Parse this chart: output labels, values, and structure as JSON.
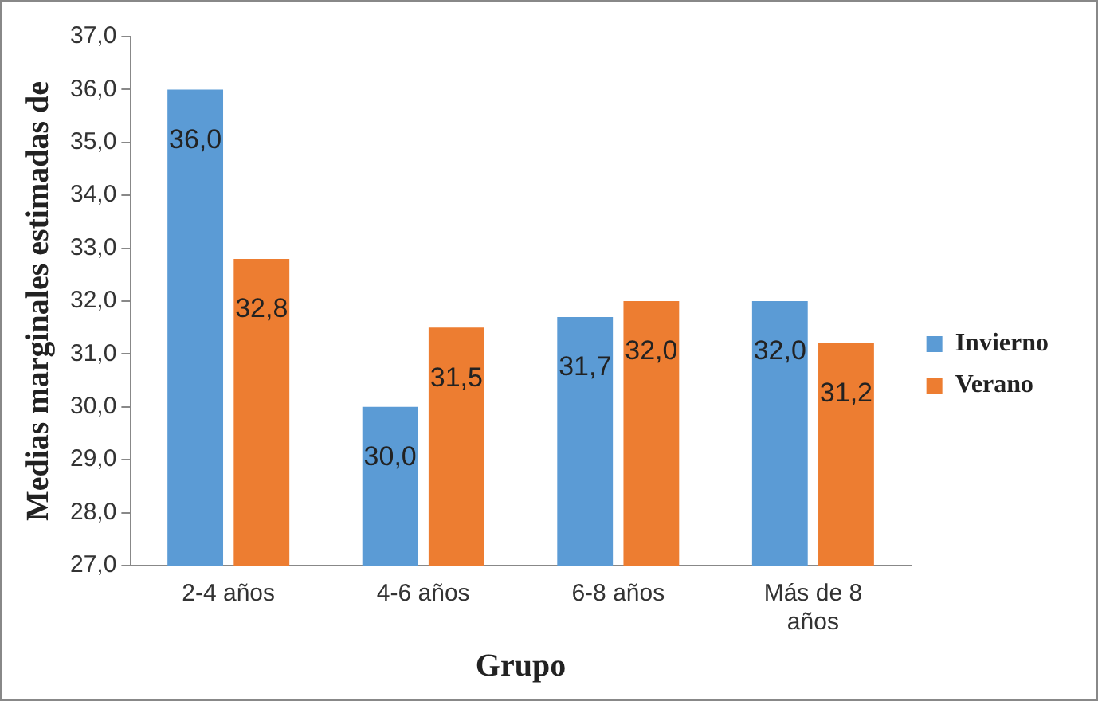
{
  "chart_data": {
    "type": "bar",
    "xlabel": "Grupo",
    "ylabel": "Medias marginales estimadas de",
    "categories": [
      "2-4 años",
      "4-6 años",
      "6-8 años",
      "Más de 8 años"
    ],
    "series": [
      {
        "name": "Invierno",
        "color": "#5b9bd5",
        "values": [
          36.0,
          30.0,
          31.7,
          32.0
        ],
        "value_labels": [
          "36,0",
          "30,0",
          "31,7",
          "32,0"
        ]
      },
      {
        "name": "Verano",
        "color": "#ed7d31",
        "values": [
          32.8,
          31.5,
          32.0,
          31.2
        ],
        "value_labels": [
          "32,8",
          "31,5",
          "32,0",
          "31,2"
        ]
      }
    ],
    "ylim": [
      27,
      37
    ],
    "yticks": [
      {
        "value": 27,
        "label": "27,0"
      },
      {
        "value": 28,
        "label": "28,0"
      },
      {
        "value": 29,
        "label": "29,0"
      },
      {
        "value": 30,
        "label": "30,0"
      },
      {
        "value": 31,
        "label": "31,0"
      },
      {
        "value": 32,
        "label": "32,0"
      },
      {
        "value": 33,
        "label": "33,0"
      },
      {
        "value": 34,
        "label": "34,0"
      },
      {
        "value": 35,
        "label": "35,0"
      },
      {
        "value": 36,
        "label": "36,0"
      },
      {
        "value": 37,
        "label": "37,0"
      }
    ],
    "grid": false,
    "legend": "right"
  }
}
